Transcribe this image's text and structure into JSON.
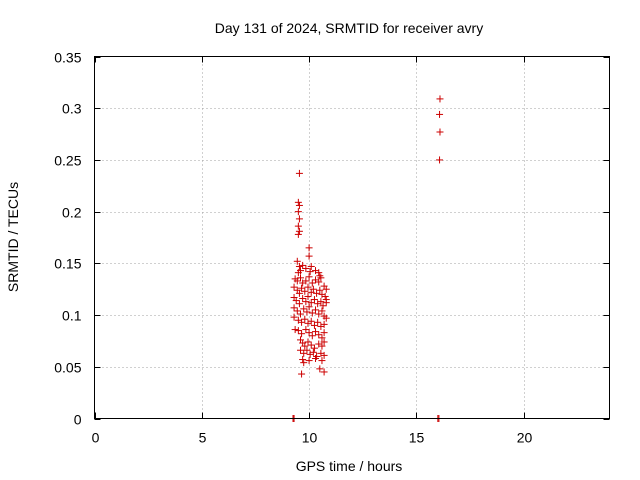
{
  "chart_data": {
    "type": "scatter",
    "title": "Day 131 of 2024, SRMTID for receiver avry",
    "xlabel": "GPS time / hours",
    "ylabel": "SRMTID / TECUs",
    "xlim": [
      0,
      24
    ],
    "ylim": [
      0,
      0.35
    ],
    "x_ticks": [
      0,
      5,
      10,
      15,
      20
    ],
    "x_tick_labels": [
      "0",
      "5",
      "10",
      "15",
      "20"
    ],
    "y_ticks": [
      0,
      0.05,
      0.1,
      0.15,
      0.2,
      0.25,
      0.3,
      0.35
    ],
    "y_tick_labels": [
      "0",
      "0.05",
      "0.1",
      "0.15",
      "0.2",
      "0.25",
      "0.3",
      "0.35"
    ],
    "grid": true,
    "marker": "plus",
    "colors": {
      "marker": "#cc0000",
      "grid": "#a0a0a0",
      "frame": "#000000"
    },
    "series": [
      {
        "points": [
          [
            9.25,
            0.0
          ],
          [
            9.3,
            0.0
          ],
          [
            16.0,
            0.0
          ],
          [
            16.05,
            0.0
          ],
          [
            9.55,
            0.237
          ],
          [
            9.5,
            0.209
          ],
          [
            9.55,
            0.206
          ],
          [
            9.5,
            0.2
          ],
          [
            9.55,
            0.193
          ],
          [
            9.5,
            0.186
          ],
          [
            9.55,
            0.181
          ],
          [
            9.5,
            0.178
          ],
          [
            16.1,
            0.309
          ],
          [
            16.08,
            0.294
          ],
          [
            16.1,
            0.277
          ],
          [
            16.08,
            0.25
          ],
          [
            10.0,
            0.165
          ],
          [
            10.0,
            0.157
          ],
          [
            9.45,
            0.152
          ],
          [
            9.55,
            0.147
          ],
          [
            9.6,
            0.143
          ],
          [
            9.5,
            0.141
          ],
          [
            9.7,
            0.148
          ],
          [
            9.85,
            0.145
          ],
          [
            10.05,
            0.142
          ],
          [
            10.1,
            0.147
          ],
          [
            10.3,
            0.143
          ],
          [
            10.45,
            0.141
          ],
          [
            10.5,
            0.138
          ],
          [
            9.35,
            0.135
          ],
          [
            9.45,
            0.133
          ],
          [
            9.6,
            0.136
          ],
          [
            9.7,
            0.131
          ],
          [
            9.85,
            0.133
          ],
          [
            10.0,
            0.137
          ],
          [
            10.15,
            0.131
          ],
          [
            10.3,
            0.134
          ],
          [
            10.45,
            0.132
          ],
          [
            10.55,
            0.136
          ],
          [
            10.7,
            0.128
          ],
          [
            10.8,
            0.125
          ],
          [
            9.3,
            0.127
          ],
          [
            9.45,
            0.124
          ],
          [
            9.55,
            0.121
          ],
          [
            9.65,
            0.126
          ],
          [
            9.8,
            0.123
          ],
          [
            9.95,
            0.127
          ],
          [
            10.1,
            0.122
          ],
          [
            10.2,
            0.125
          ],
          [
            10.35,
            0.121
          ],
          [
            10.5,
            0.124
          ],
          [
            10.6,
            0.12
          ],
          [
            10.75,
            0.118
          ],
          [
            10.8,
            0.115
          ],
          [
            9.3,
            0.117
          ],
          [
            9.4,
            0.114
          ],
          [
            9.55,
            0.111
          ],
          [
            9.7,
            0.116
          ],
          [
            9.85,
            0.113
          ],
          [
            9.95,
            0.118
          ],
          [
            10.1,
            0.112
          ],
          [
            10.25,
            0.115
          ],
          [
            10.4,
            0.111
          ],
          [
            10.55,
            0.113
          ],
          [
            10.65,
            0.109
          ],
          [
            10.8,
            0.112
          ],
          [
            9.3,
            0.107
          ],
          [
            9.45,
            0.104
          ],
          [
            9.6,
            0.101
          ],
          [
            9.75,
            0.106
          ],
          [
            9.9,
            0.103
          ],
          [
            10.0,
            0.108
          ],
          [
            10.15,
            0.102
          ],
          [
            10.3,
            0.105
          ],
          [
            10.45,
            0.101
          ],
          [
            10.6,
            0.104
          ],
          [
            10.7,
            0.099
          ],
          [
            10.8,
            0.097
          ],
          [
            9.3,
            0.098
          ],
          [
            9.5,
            0.095
          ],
          [
            9.65,
            0.093
          ],
          [
            9.8,
            0.096
          ],
          [
            9.95,
            0.092
          ],
          [
            10.1,
            0.094
          ],
          [
            10.25,
            0.09
          ],
          [
            10.4,
            0.093
          ],
          [
            10.55,
            0.089
          ],
          [
            10.7,
            0.091
          ],
          [
            9.35,
            0.086
          ],
          [
            9.5,
            0.085
          ],
          [
            9.65,
            0.082
          ],
          [
            9.85,
            0.086
          ],
          [
            10.0,
            0.083
          ],
          [
            10.15,
            0.08
          ],
          [
            10.3,
            0.084
          ],
          [
            10.45,
            0.081
          ],
          [
            10.6,
            0.078
          ],
          [
            10.7,
            0.083
          ],
          [
            9.6,
            0.076
          ],
          [
            9.7,
            0.073
          ],
          [
            9.8,
            0.07
          ],
          [
            9.95,
            0.074
          ],
          [
            10.1,
            0.071
          ],
          [
            10.25,
            0.068
          ],
          [
            10.45,
            0.072
          ],
          [
            10.6,
            0.07
          ],
          [
            10.7,
            0.074
          ],
          [
            9.6,
            0.066
          ],
          [
            9.75,
            0.063
          ],
          [
            9.9,
            0.066
          ],
          [
            10.05,
            0.062
          ],
          [
            10.2,
            0.064
          ],
          [
            10.35,
            0.06
          ],
          [
            10.55,
            0.063
          ],
          [
            10.7,
            0.061
          ],
          [
            9.7,
            0.057
          ],
          [
            9.75,
            0.054
          ],
          [
            10.0,
            0.056
          ],
          [
            10.3,
            0.058
          ],
          [
            10.6,
            0.056
          ],
          [
            10.5,
            0.048
          ],
          [
            10.7,
            0.045
          ],
          [
            9.65,
            0.043
          ]
        ]
      }
    ]
  }
}
